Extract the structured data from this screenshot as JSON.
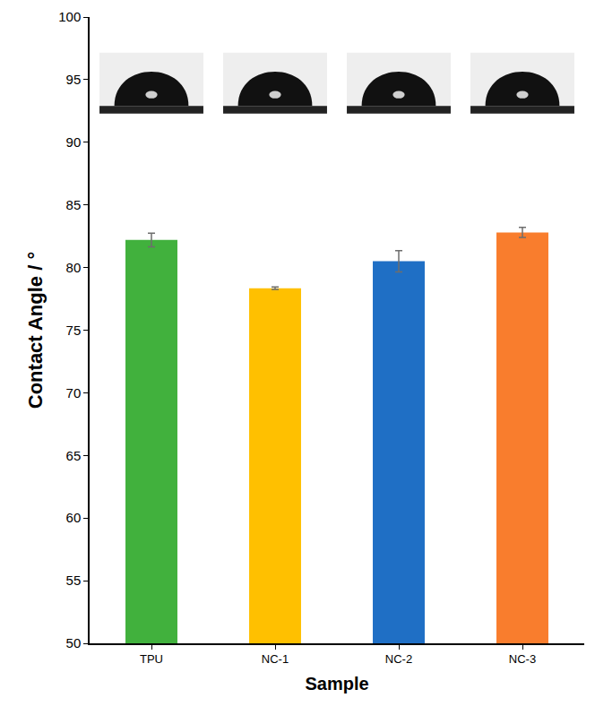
{
  "chart_data": {
    "type": "bar",
    "x_label": "Sample",
    "y_label": "Contact Angle / °",
    "categories": [
      "TPU",
      "NC-1",
      "NC-2",
      "NC-3"
    ],
    "values": [
      82.2,
      78.35,
      80.5,
      82.8
    ],
    "errors": [
      0.55,
      0.1,
      0.85,
      0.4
    ],
    "colors": [
      "#41b13d",
      "#ffc000",
      "#1f6fc5",
      "#f97d2d"
    ],
    "ylim": [
      50,
      100
    ],
    "yticks": [
      50,
      55,
      60,
      65,
      70,
      75,
      80,
      85,
      90,
      95,
      100
    ],
    "grid": false
  }
}
